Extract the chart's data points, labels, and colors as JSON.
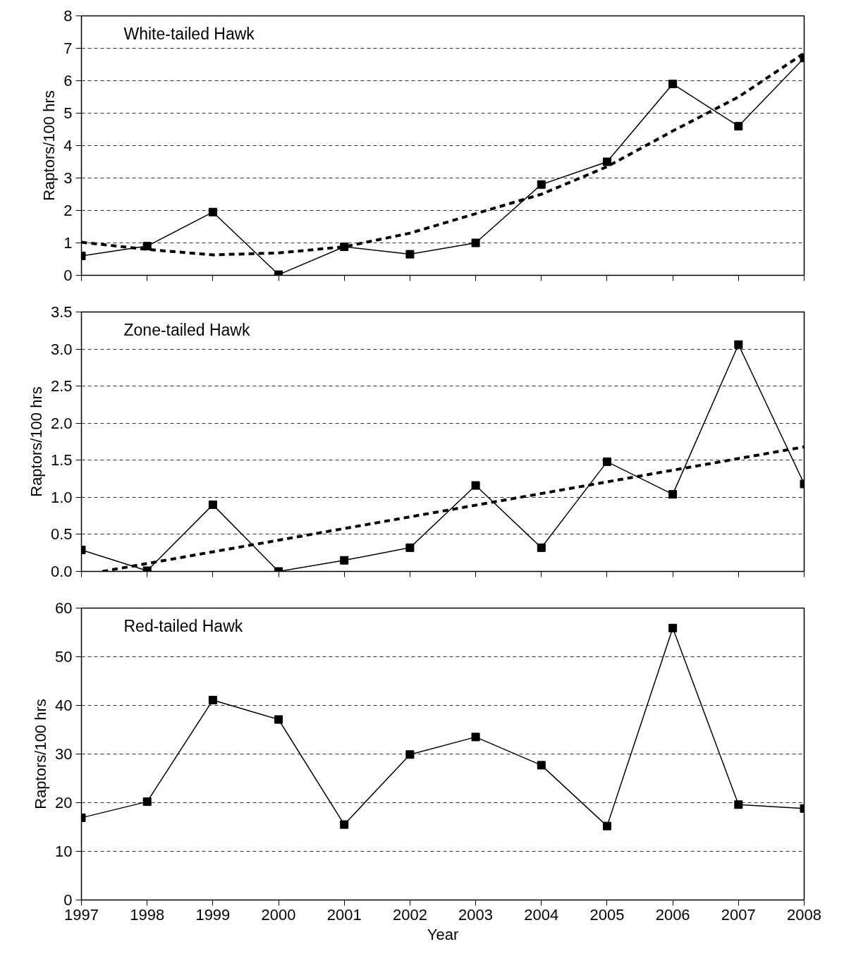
{
  "chart_data": [
    {
      "type": "line",
      "title": "White-tailed Hawk",
      "ylabel": "Raptors/100 hrs",
      "x": [
        1997,
        1998,
        1999,
        2000,
        2001,
        2002,
        2003,
        2004,
        2005,
        2006,
        2007,
        2008
      ],
      "xlim": [
        1997,
        2008
      ],
      "xticks": [
        {
          "value": 1997,
          "label": null
        },
        {
          "value": 1998,
          "label": null
        },
        {
          "value": 1999,
          "label": null
        },
        {
          "value": 2000,
          "label": null
        },
        {
          "value": 2001,
          "label": null
        },
        {
          "value": 2002,
          "label": null
        },
        {
          "value": 2003,
          "label": null
        },
        {
          "value": 2004,
          "label": null
        },
        {
          "value": 2005,
          "label": null
        },
        {
          "value": 2006,
          "label": null
        },
        {
          "value": 2007,
          "label": null
        },
        {
          "value": 2008,
          "label": null
        }
      ],
      "ylim": [
        0,
        8
      ],
      "yticks": [
        0,
        1,
        2,
        3,
        4,
        5,
        6,
        7,
        8
      ],
      "tick_labels": "y",
      "grid": "y",
      "series": [
        {
          "color": "#000000",
          "marker": "square",
          "line_style": "solid",
          "values": [
            0.6,
            0.9,
            1.95,
            0.02,
            0.88,
            0.65,
            1.0,
            2.8,
            3.5,
            5.9,
            4.6,
            6.7
          ]
        },
        {
          "type": "line",
          "color": "#000000",
          "marker": "none",
          "line_style": "dashed",
          "values": [
            1.02,
            0.8,
            0.63,
            0.69,
            0.88,
            1.3,
            1.9,
            2.5,
            3.35,
            4.45,
            5.5,
            6.85
          ]
        }
      ]
    },
    {
      "type": "line",
      "title": "Zone-tailed Hawk",
      "ylabel": "Raptors/100 hrs",
      "x": [
        1997,
        1998,
        1999,
        2000,
        2001,
        2002,
        2003,
        2004,
        2005,
        2006,
        2007,
        2008
      ],
      "xlim": [
        1997,
        2008
      ],
      "xticks": [
        {
          "value": 1997,
          "label": null
        },
        {
          "value": 1998,
          "label": null
        },
        {
          "value": 1999,
          "label": null
        },
        {
          "value": 2000,
          "label": null
        },
        {
          "value": 2001,
          "label": null
        },
        {
          "value": 2002,
          "label": null
        },
        {
          "value": 2003,
          "label": null
        },
        {
          "value": 2004,
          "label": null
        },
        {
          "value": 2005,
          "label": null
        },
        {
          "value": 2006,
          "label": null
        },
        {
          "value": 2007,
          "label": null
        },
        {
          "value": 2008,
          "label": null
        }
      ],
      "ylim": [
        0,
        3.5
      ],
      "yticks": [
        {
          "value": 0,
          "label": "0.0"
        },
        {
          "value": 0.5,
          "label": "0.5"
        },
        {
          "value": 1,
          "label": "1.0"
        },
        {
          "value": 1.5,
          "label": "1.5"
        },
        {
          "value": 2,
          "label": "2.0"
        },
        {
          "value": 2.5,
          "label": "2.5"
        },
        {
          "value": 3,
          "label": "3.0"
        },
        {
          "value": 3.5,
          "label": "3.5"
        }
      ],
      "tick_labels": "y",
      "grid": "y",
      "series": [
        {
          "color": "#000000",
          "marker": "square",
          "line_style": "solid",
          "values": [
            0.29,
            0.01,
            0.9,
            0.0,
            0.15,
            0.32,
            1.16,
            0.32,
            1.48,
            1.04,
            3.06,
            1.18
          ]
        },
        {
          "type": "line",
          "color": "#000000",
          "marker": "none",
          "line_style": "dashed",
          "x": [
            1997.32,
            2008
          ],
          "values": [
            0.0,
            1.68
          ]
        }
      ]
    },
    {
      "type": "line",
      "title": "Red-tailed Hawk",
      "xlabel": "Year",
      "ylabel": "Raptors/100 hrs",
      "x": [
        1997,
        1998,
        1999,
        2000,
        2001,
        2002,
        2003,
        2004,
        2005,
        2006,
        2007,
        2008
      ],
      "xlim": [
        1997,
        2008
      ],
      "xticks": [
        1997,
        1998,
        1999,
        2000,
        2001,
        2002,
        2003,
        2004,
        2005,
        2006,
        2007,
        2008
      ],
      "ylim": [
        0,
        60
      ],
      "yticks": [
        0,
        10,
        20,
        30,
        40,
        50,
        60
      ],
      "grid": "y",
      "series": [
        {
          "color": "#000000",
          "marker": "square",
          "line_style": "solid",
          "values": [
            16.9,
            20.2,
            41.1,
            37.1,
            15.5,
            29.9,
            33.5,
            27.7,
            15.2,
            55.9,
            19.6,
            18.8
          ]
        }
      ]
    }
  ]
}
